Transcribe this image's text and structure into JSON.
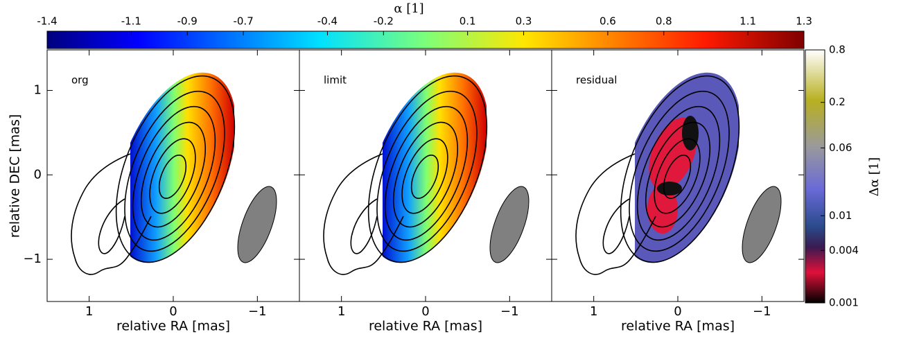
{
  "chart_data": {
    "type": "image",
    "colorbar_top": {
      "label": "α [1]",
      "lim": [
        -1.4,
        1.3
      ],
      "ticks": [
        -1.4,
        -1.1,
        -0.9,
        -0.7,
        -0.4,
        -0.2,
        0.1,
        0.3,
        0.6,
        0.8,
        1.1,
        1.3
      ]
    },
    "colorbar_right": {
      "label": "Δα [1]",
      "lim": [
        0.001,
        0.8
      ],
      "log": true,
      "ticks": [
        0.001,
        0.004,
        0.01,
        0.06,
        0.2,
        0.8
      ]
    },
    "panels": [
      {
        "label": "org"
      },
      {
        "label": "limit"
      },
      {
        "label": "residual"
      }
    ],
    "xlabel": "relative RA [mas]",
    "ylabel": "relative DEC [mas]",
    "xlim": [
      1.5,
      -1.5
    ],
    "xticks": [
      1,
      0,
      {
        "value": -1,
        "label": "−1"
      }
    ],
    "ylim": [
      -1.5,
      1.48
    ],
    "yticks": [
      1,
      0,
      {
        "value": -1,
        "label": "−1"
      }
    ]
  }
}
